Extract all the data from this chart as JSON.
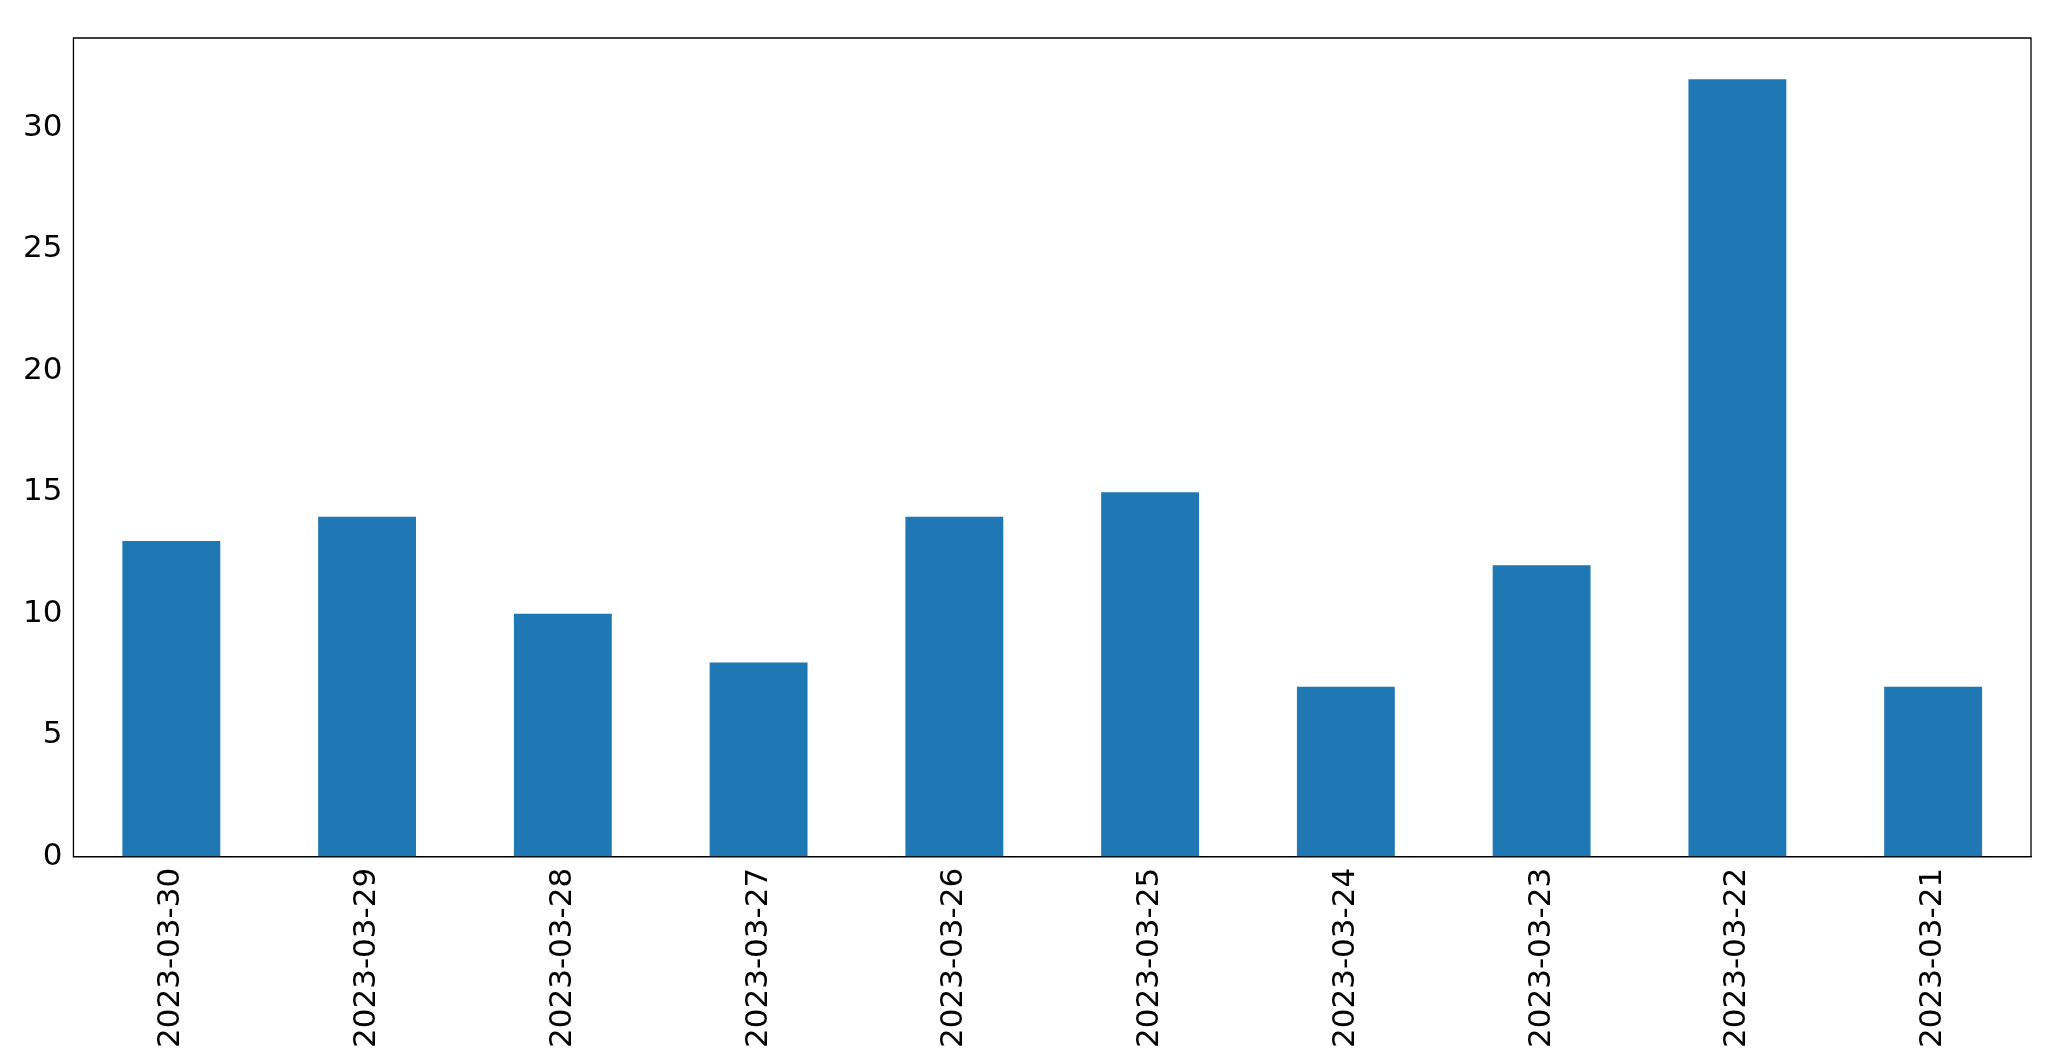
{
  "chart_data": {
    "type": "bar",
    "categories": [
      "2023-03-30",
      "2023-03-29",
      "2023-03-28",
      "2023-03-27",
      "2023-03-26",
      "2023-03-25",
      "2023-03-24",
      "2023-03-23",
      "2023-03-22",
      "2023-03-21"
    ],
    "values": [
      13,
      14,
      10,
      8,
      14,
      15,
      7,
      12,
      32,
      7
    ],
    "color": "#1f77b4",
    "ylim": [
      0,
      33.7
    ],
    "yticks": [
      0,
      5,
      10,
      15,
      20,
      25,
      30
    ],
    "grid": false,
    "legend": false
  }
}
